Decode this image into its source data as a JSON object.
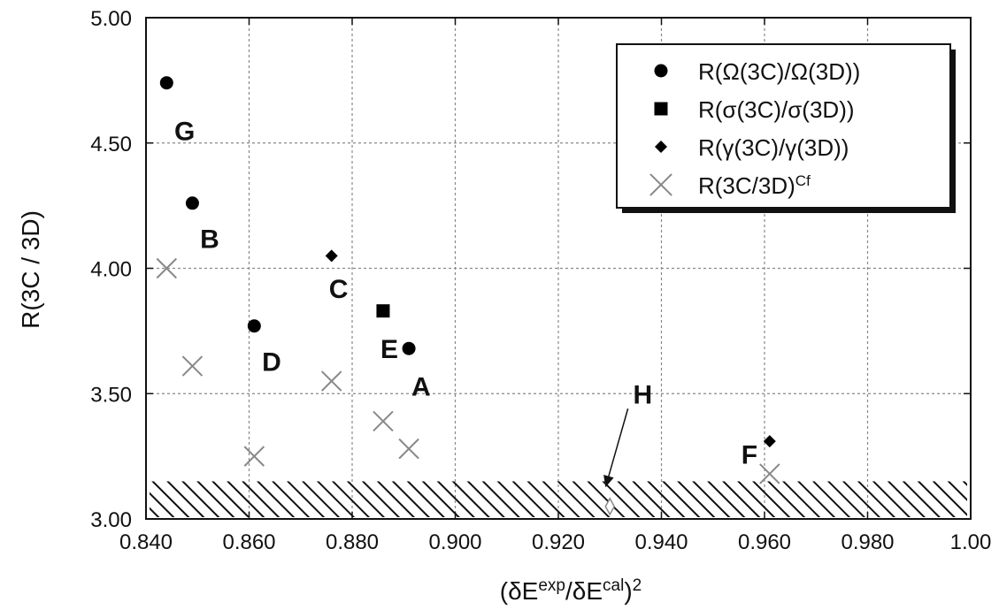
{
  "chart_data": {
    "type": "scatter",
    "xlabel": {
      "base": "(δE",
      "sup1": "exp",
      "mid": "/δE",
      "sup2": "cal",
      "close": ")",
      "sup3": "2"
    },
    "ylabel": "R(3C / 3D)",
    "xlim": [
      0.84,
      1.0
    ],
    "ylim": [
      3.0,
      5.0
    ],
    "xticks": [
      0.84,
      0.86,
      0.88,
      0.9,
      0.92,
      0.94,
      0.96,
      0.98,
      1.0
    ],
    "xtick_labels": [
      "0.840",
      "0.860",
      "0.880",
      "0.900",
      "0.920",
      "0.940",
      "0.960",
      "0.980",
      "1.00"
    ],
    "yticks": [
      3.0,
      3.5,
      4.0,
      4.5,
      5.0
    ],
    "ytick_labels": [
      "3.00",
      "3.50",
      "4.00",
      "4.50",
      "5.00"
    ],
    "grid": true,
    "legend_position": "top-right",
    "series": [
      {
        "legend_label": "R(Ω(3C)/Ω(3D))",
        "marker": "circle",
        "color": "#000000",
        "points": [
          {
            "x": 0.844,
            "y": 4.74
          },
          {
            "x": 0.849,
            "y": 4.26
          },
          {
            "x": 0.861,
            "y": 3.77
          },
          {
            "x": 0.891,
            "y": 3.68
          }
        ]
      },
      {
        "legend_label": "R(σ(3C)/σ(3D))",
        "marker": "square",
        "color": "#000000",
        "points": [
          {
            "x": 0.886,
            "y": 3.83
          }
        ]
      },
      {
        "legend_label": "R(γ(3C)/γ(3D))",
        "marker": "diamond",
        "color": "#000000",
        "points": [
          {
            "x": 0.876,
            "y": 4.05
          },
          {
            "x": 0.961,
            "y": 3.31
          }
        ]
      },
      {
        "legend_label": {
          "base": "R(3C/3D)",
          "sup": "Cf"
        },
        "marker": "x",
        "color": "#888888",
        "points": [
          {
            "x": 0.844,
            "y": 4.0
          },
          {
            "x": 0.849,
            "y": 3.61
          },
          {
            "x": 0.861,
            "y": 3.25
          },
          {
            "x": 0.876,
            "y": 3.55
          },
          {
            "x": 0.886,
            "y": 3.39
          },
          {
            "x": 0.891,
            "y": 3.28
          },
          {
            "x": 0.961,
            "y": 3.18
          }
        ]
      }
    ],
    "extra_points": [
      {
        "x": 0.93,
        "y": 3.05,
        "marker": "open-diamond",
        "color": "#888888"
      }
    ],
    "hatched_band": {
      "y_from": 3.0,
      "y_to": 3.15
    },
    "point_labels": [
      {
        "text": "G",
        "x": 0.8455,
        "y": 4.55
      },
      {
        "text": "B",
        "x": 0.8505,
        "y": 4.12
      },
      {
        "text": "C",
        "x": 0.8755,
        "y": 3.92
      },
      {
        "text": "D",
        "x": 0.8625,
        "y": 3.63
      },
      {
        "text": "E",
        "x": 0.8855,
        "y": 3.68
      },
      {
        "text": "A",
        "x": 0.8915,
        "y": 3.53
      },
      {
        "text": "H",
        "x": 0.9345,
        "y": 3.5
      },
      {
        "text": "F",
        "x": 0.9555,
        "y": 3.26
      }
    ],
    "annotation_arrow": {
      "from": {
        "x": 0.9335,
        "y": 3.44
      },
      "to": {
        "x": 0.9292,
        "y": 3.13
      }
    }
  }
}
